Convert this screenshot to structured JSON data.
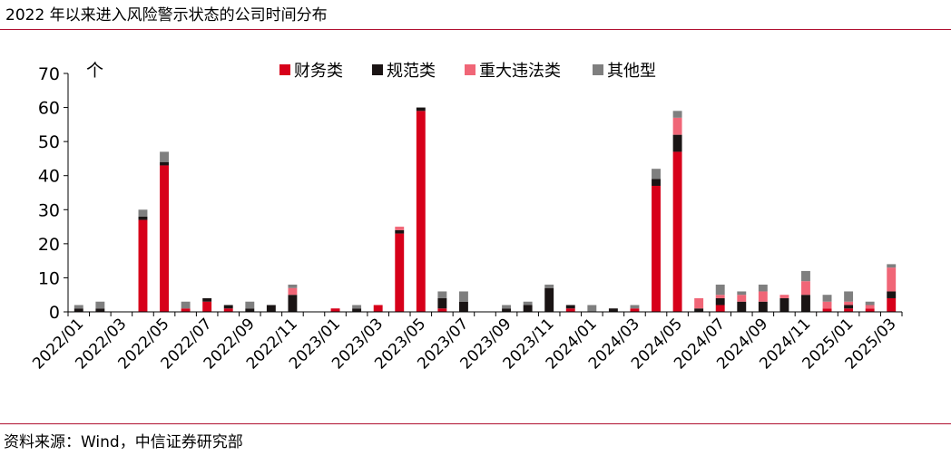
{
  "title": "2022 年以来进入风险警示状态的公司时间分布",
  "source": "资料来源：Wind，中信证券研究部",
  "chart_data": {
    "type": "bar",
    "stacked": true,
    "ylabel": "个",
    "ylim": [
      0,
      70
    ],
    "yticks": [
      0,
      10,
      20,
      30,
      40,
      50,
      60,
      70
    ],
    "grid": false,
    "legend_position": "top",
    "tick_label_months": [
      "2022/01",
      "2022/03",
      "2022/05",
      "2022/07",
      "2022/09",
      "2022/11",
      "2023/01",
      "2023/03",
      "2023/05",
      "2023/07",
      "2023/09",
      "2023/11",
      "2024/01",
      "2024/03",
      "2024/05",
      "2024/07",
      "2024/09",
      "2024/11",
      "2025/01",
      "2025/03"
    ],
    "categories": [
      "2022/01",
      "2022/02",
      "2022/03",
      "2022/04",
      "2022/05",
      "2022/06",
      "2022/07",
      "2022/08",
      "2022/09",
      "2022/10",
      "2022/11",
      "2022/12",
      "2023/01",
      "2023/02",
      "2023/03",
      "2023/04",
      "2023/05",
      "2023/06",
      "2023/07",
      "2023/08",
      "2023/09",
      "2023/10",
      "2023/11",
      "2023/12",
      "2024/01",
      "2024/02",
      "2024/03",
      "2024/04",
      "2024/05",
      "2024/06",
      "2024/07",
      "2024/08",
      "2024/09",
      "2024/10",
      "2024/11",
      "2024/12",
      "2025/01",
      "2025/02",
      "2025/03"
    ],
    "series": [
      {
        "name": "财务类",
        "color": "#d7001a",
        "values": [
          0,
          0,
          0,
          27,
          43,
          1,
          3,
          1,
          0,
          0,
          0,
          0,
          1,
          0,
          2,
          23,
          59,
          1,
          0,
          0,
          0,
          0,
          0,
          1,
          0,
          0,
          1,
          37,
          47,
          0,
          2,
          0,
          0,
          0,
          0,
          1,
          1,
          1,
          4
        ]
      },
      {
        "name": "规范类",
        "color": "#1a1414",
        "values": [
          1,
          1,
          0,
          1,
          1,
          0,
          1,
          1,
          1,
          2,
          5,
          0,
          0,
          1,
          0,
          1,
          1,
          3,
          3,
          0,
          1,
          2,
          7,
          1,
          0,
          1,
          0,
          2,
          5,
          1,
          2,
          3,
          3,
          4,
          5,
          0,
          1,
          0,
          2
        ]
      },
      {
        "name": "重大违法类",
        "color": "#f06677",
        "values": [
          0,
          0,
          0,
          0,
          0,
          0,
          0,
          0,
          0,
          0,
          2,
          0,
          0,
          0,
          0,
          1,
          0,
          0,
          0,
          0,
          0,
          0,
          0,
          0,
          0,
          0,
          0,
          0,
          5,
          3,
          1,
          2,
          3,
          1,
          4,
          2,
          1,
          1,
          7
        ]
      },
      {
        "name": "其他型",
        "color": "#7f7f7f",
        "values": [
          1,
          2,
          0,
          2,
          3,
          2,
          0,
          0,
          2,
          0,
          1,
          0,
          0,
          1,
          0,
          0,
          0,
          2,
          3,
          0,
          1,
          1,
          1,
          0,
          2,
          0,
          1,
          3,
          2,
          0,
          3,
          1,
          2,
          0,
          3,
          2,
          3,
          1,
          1
        ]
      }
    ]
  }
}
